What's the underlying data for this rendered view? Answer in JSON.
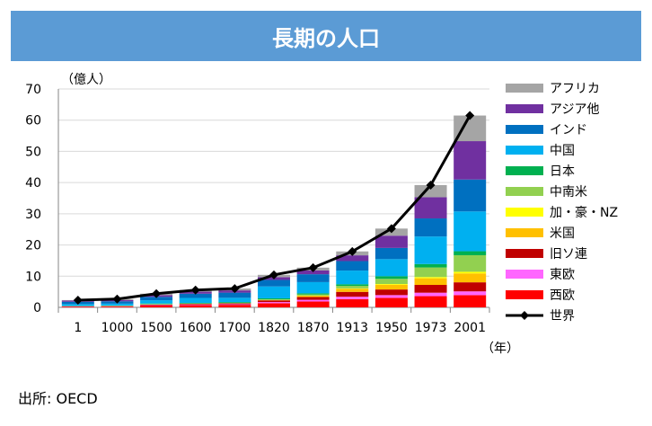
{
  "title": "長期の人口",
  "source": "出所: OECD",
  "chart_data": {
    "type": "bar",
    "stacked": true,
    "title": "長期の人口",
    "ylabel": "（億人）",
    "xlabel": "（年）",
    "ylim": [
      0,
      70
    ],
    "yticks": [
      0,
      10,
      20,
      30,
      40,
      50,
      60,
      70
    ],
    "grid": true,
    "legend_position": "right",
    "categories": [
      "1",
      "1000",
      "1500",
      "1600",
      "1700",
      "1820",
      "1870",
      "1913",
      "1950",
      "1973",
      "2001"
    ],
    "series": [
      {
        "name": "西欧",
        "color": "#ff0000",
        "values": [
          0.25,
          0.25,
          0.57,
          0.74,
          0.82,
          1.33,
          1.88,
          2.61,
          3.05,
          3.59,
          3.92
        ]
      },
      {
        "name": "東欧",
        "color": "#ff66ff",
        "values": [
          0.05,
          0.07,
          0.14,
          0.17,
          0.19,
          0.37,
          0.54,
          0.8,
          0.88,
          1.11,
          1.21
        ]
      },
      {
        "name": "旧ソ連",
        "color": "#c00000",
        "values": [
          0.04,
          0.07,
          0.17,
          0.21,
          0.27,
          0.55,
          0.89,
          1.56,
          1.8,
          2.5,
          2.9
        ]
      },
      {
        "name": "米国",
        "color": "#ffc000",
        "values": [
          0.01,
          0.01,
          0.02,
          0.02,
          0.01,
          0.1,
          0.4,
          0.98,
          1.52,
          2.12,
          2.85
        ]
      },
      {
        "name": "加・豪・NZ",
        "color": "#ffff00",
        "values": [
          0.005,
          0.007,
          0.008,
          0.008,
          0.008,
          0.013,
          0.06,
          0.14,
          0.24,
          0.4,
          0.53
        ]
      },
      {
        "name": "中南米",
        "color": "#92d050",
        "values": [
          0.06,
          0.11,
          0.18,
          0.09,
          0.12,
          0.22,
          0.4,
          0.81,
          1.66,
          3.08,
          5.31
        ]
      },
      {
        "name": "日本",
        "color": "#00b050",
        "values": [
          0.03,
          0.08,
          0.15,
          0.19,
          0.27,
          0.31,
          0.34,
          0.52,
          0.84,
          1.09,
          1.27
        ]
      },
      {
        "name": "中国",
        "color": "#00b0f0",
        "values": [
          0.6,
          0.59,
          1.03,
          1.6,
          1.38,
          3.81,
          3.58,
          4.37,
          5.47,
          8.82,
          12.75
        ]
      },
      {
        "name": "インド",
        "color": "#0070c0",
        "values": [
          0.75,
          0.75,
          1.1,
          1.35,
          1.65,
          2.09,
          2.53,
          3.04,
          3.59,
          5.8,
          10.24
        ]
      },
      {
        "name": "アジア他",
        "color": "#7030a0",
        "values": [
          0.37,
          0.41,
          0.55,
          0.65,
          0.72,
          0.89,
          1.2,
          1.85,
          3.93,
          6.79,
          12.3
        ]
      },
      {
        "name": "アフリカ",
        "color": "#a5a5a5",
        "values": [
          0.17,
          0.32,
          0.47,
          0.55,
          0.61,
          0.74,
          0.91,
          1.25,
          2.28,
          3.9,
          8.21
        ]
      }
    ],
    "line": {
      "name": "世界",
      "color": "#000000",
      "values": [
        2.31,
        2.68,
        4.38,
        5.56,
        6.03,
        10.42,
        12.72,
        17.91,
        25.24,
        39.16,
        61.49
      ]
    }
  }
}
